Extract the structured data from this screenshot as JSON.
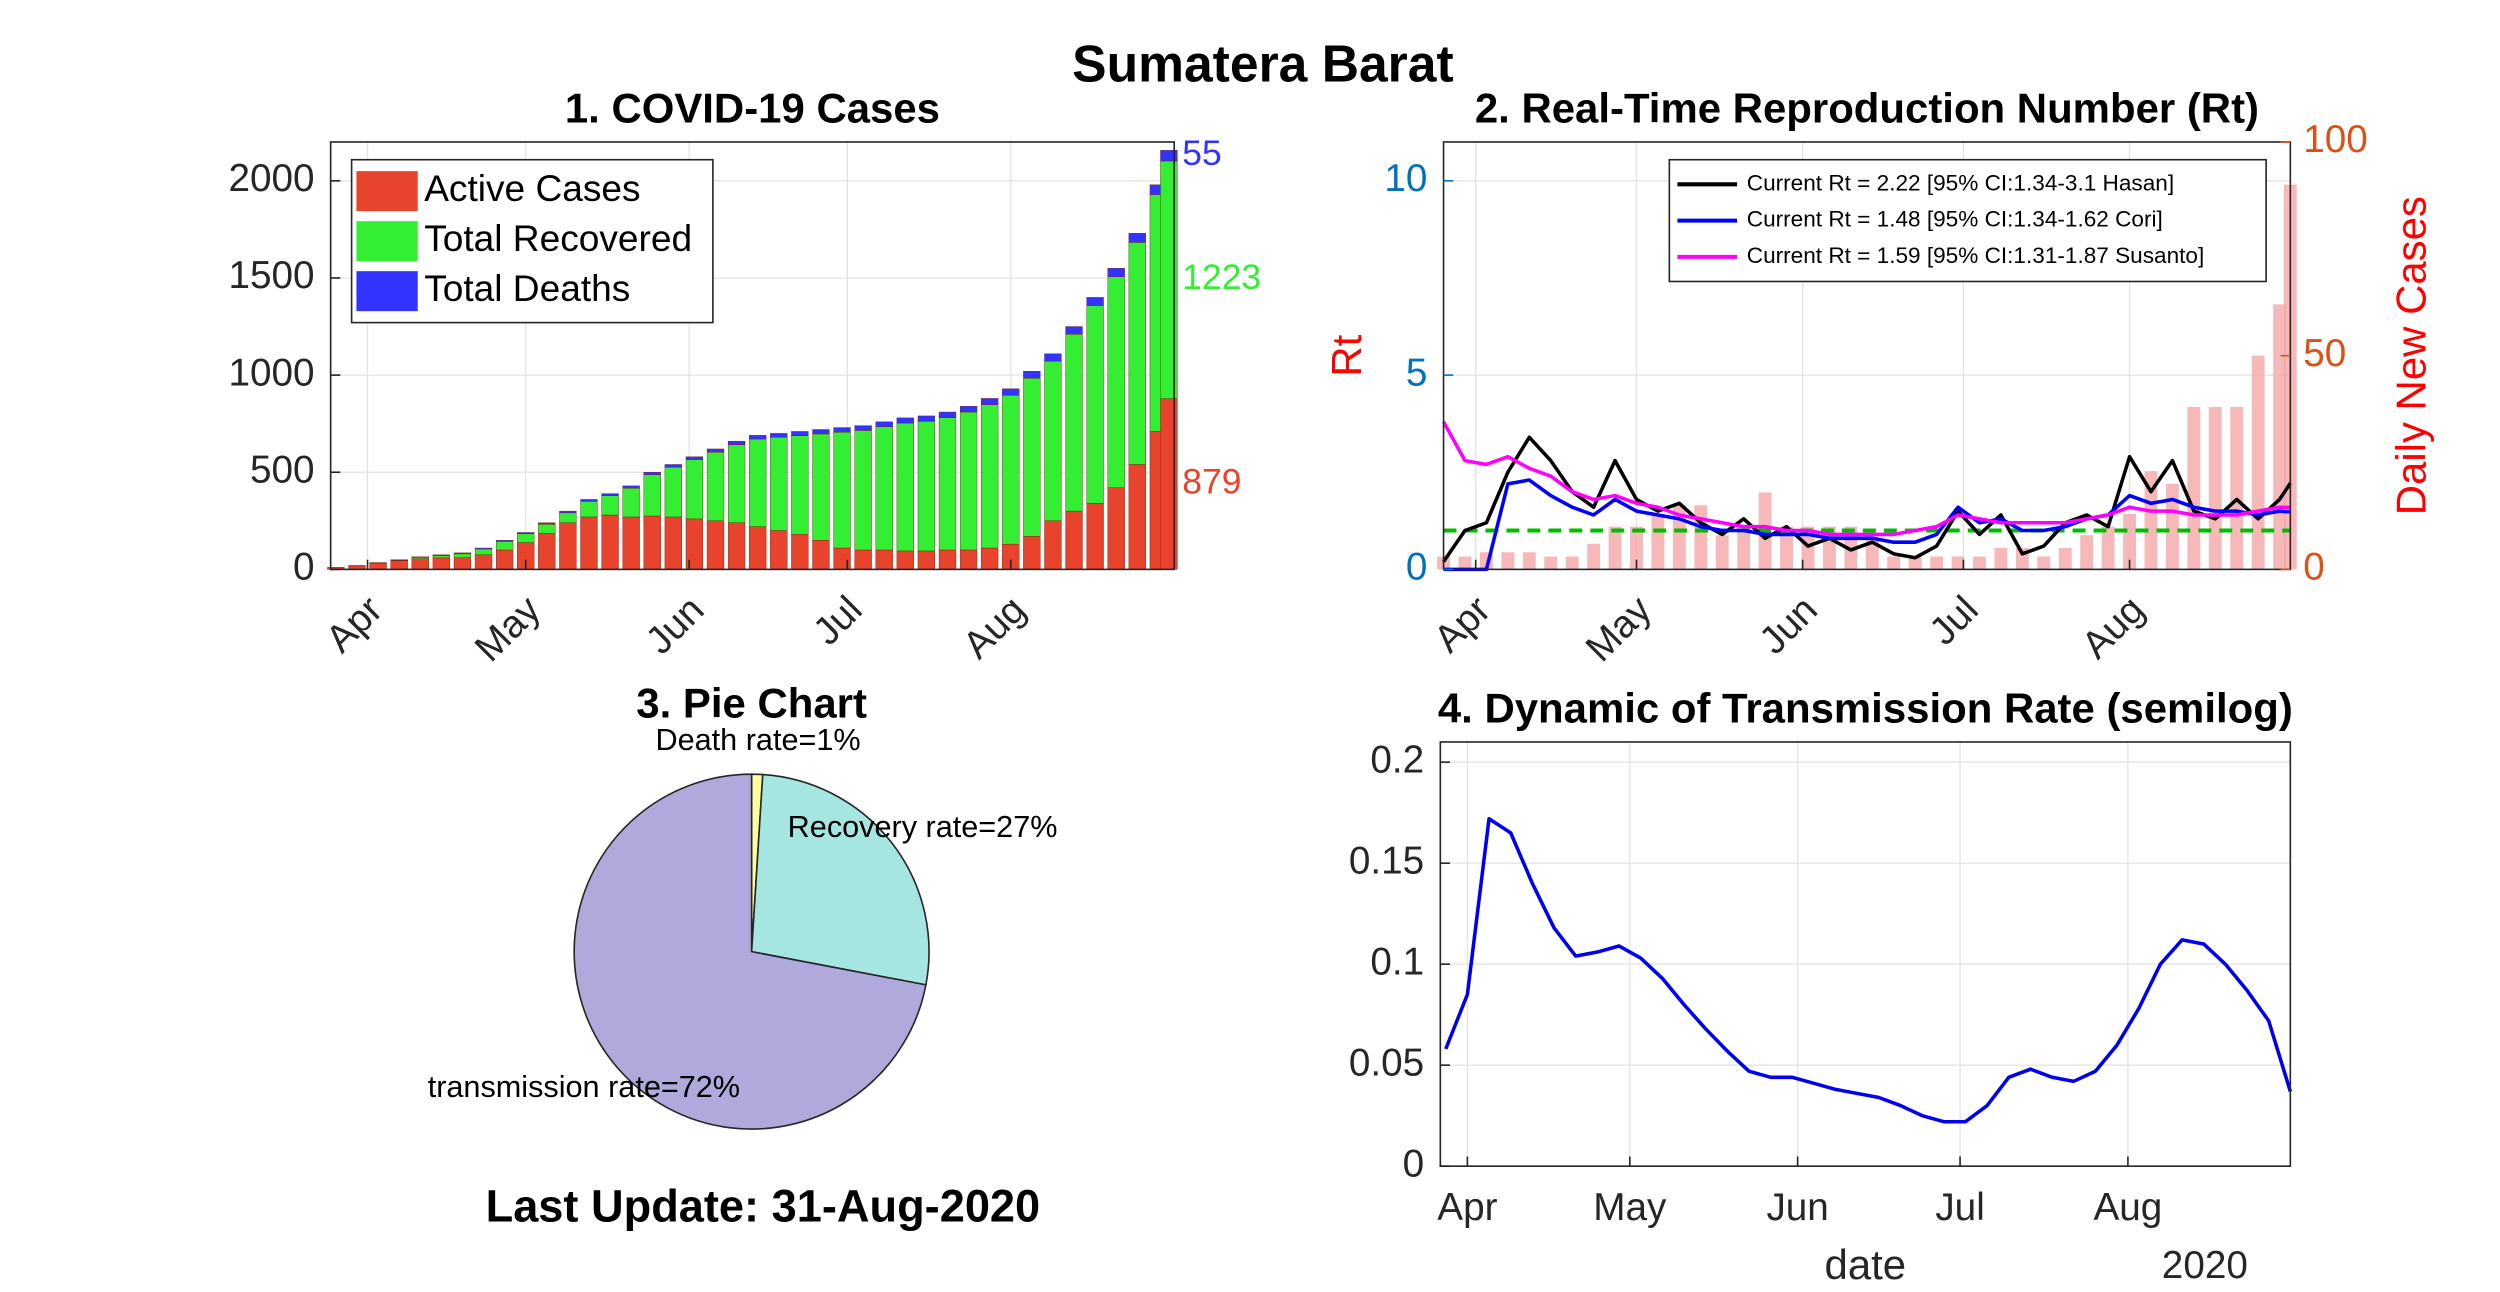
{
  "title": "Sumatera Barat",
  "footer": "Last Update: 31-Aug-2020",
  "chart_data": [
    {
      "type": "bar",
      "stacked": true,
      "title": "1. COVID-19 Cases",
      "x": [
        86,
        90,
        94,
        98,
        102,
        106,
        110,
        114,
        118,
        122,
        126,
        130,
        134,
        138,
        142,
        146,
        150,
        154,
        158,
        162,
        166,
        170,
        174,
        178,
        182,
        186,
        190,
        194,
        198,
        202,
        206,
        210,
        214,
        218,
        222,
        226,
        230,
        234,
        238,
        242,
        244
      ],
      "series": [
        {
          "name": "Active Cases",
          "color": "#e8432c",
          "values": [
            9,
            18,
            32,
            45,
            55,
            60,
            60,
            75,
            100,
            138,
            185,
            240,
            270,
            280,
            270,
            275,
            270,
            260,
            250,
            240,
            220,
            200,
            180,
            150,
            110,
            100,
            100,
            95,
            95,
            100,
            100,
            110,
            130,
            170,
            250,
            300,
            340,
            420,
            540,
            710,
            879
          ]
        },
        {
          "name": "Total Recovered",
          "color": "#33ee33",
          "values": [
            0,
            0,
            1,
            2,
            7,
            11,
            20,
            30,
            44,
            45,
            47,
            51,
            80,
            99,
            148,
            212,
            256,
            305,
            353,
            402,
            451,
            480,
            508,
            547,
            596,
            615,
            634,
            658,
            667,
            681,
            710,
            738,
            766,
            814,
            822,
            910,
            1018,
            1086,
            1143,
            1219,
            1223
          ]
        },
        {
          "name": "Total Deaths",
          "color": "#3333ff",
          "values": [
            1,
            2,
            2,
            3,
            3,
            4,
            5,
            5,
            6,
            7,
            8,
            9,
            10,
            11,
            12,
            13,
            14,
            15,
            17,
            18,
            19,
            20,
            22,
            23,
            24,
            25,
            26,
            27,
            28,
            29,
            30,
            32,
            34,
            36,
            38,
            40,
            42,
            44,
            47,
            51,
            55
          ]
        }
      ],
      "label_last": true,
      "xlim": [
        85,
        245
      ],
      "xticks": [
        {
          "value": 92,
          "label": "Apr"
        },
        {
          "value": 122,
          "label": "May"
        },
        {
          "value": 153,
          "label": "Jun"
        },
        {
          "value": 183,
          "label": "Jul"
        },
        {
          "value": 214,
          "label": "Aug"
        }
      ],
      "ylim": [
        0,
        2200
      ],
      "yticks": [
        0,
        500,
        1000,
        1500,
        2000
      ],
      "grid": true,
      "legend": "upper-left"
    },
    {
      "type": "line",
      "title": "2. Real-Time Reproduction Number (Rt)",
      "ylabel": "Rt",
      "ylabel_color": "#ff0000",
      "y2label": "Daily New Cases",
      "y2label_color": "#ff0000",
      "ytick_color": "#0072bd",
      "y2tick_color": "#d95319",
      "x": [
        86,
        90,
        94,
        98,
        102,
        106,
        110,
        114,
        118,
        122,
        126,
        130,
        134,
        138,
        142,
        146,
        150,
        154,
        158,
        162,
        166,
        170,
        174,
        178,
        182,
        186,
        190,
        194,
        198,
        202,
        206,
        210,
        214,
        218,
        222,
        226,
        230,
        234,
        238,
        242,
        244
      ],
      "series": [
        {
          "name": "Current Rt = 2.22 [95% CI:1.34-3.1 Hasan]",
          "color": "#000000",
          "values": [
            0.2,
            1.0,
            1.2,
            2.5,
            3.4,
            2.8,
            2.0,
            1.6,
            2.8,
            1.8,
            1.5,
            1.7,
            1.2,
            0.9,
            1.3,
            0.8,
            1.1,
            0.6,
            0.8,
            0.5,
            0.7,
            0.4,
            0.3,
            0.6,
            1.5,
            0.9,
            1.4,
            0.4,
            0.6,
            1.2,
            1.4,
            1.1,
            2.9,
            2.0,
            2.8,
            1.5,
            1.3,
            1.8,
            1.3,
            1.8,
            2.22
          ]
        },
        {
          "name": "Current Rt = 1.48 [95% CI:1.34-1.62 Cori]",
          "color": "#0000ff",
          "values": [
            0,
            0,
            0,
            2.2,
            2.3,
            1.9,
            1.6,
            1.4,
            1.8,
            1.5,
            1.4,
            1.3,
            1.1,
            1.0,
            1.0,
            0.9,
            0.9,
            0.9,
            0.8,
            0.8,
            0.8,
            0.7,
            0.7,
            0.9,
            1.6,
            1.2,
            1.3,
            1.0,
            1.0,
            1.1,
            1.3,
            1.4,
            1.9,
            1.7,
            1.8,
            1.6,
            1.5,
            1.5,
            1.4,
            1.5,
            1.48
          ]
        },
        {
          "name": "Current Rt = 1.59 [95% CI:1.31-1.87 Susanto]",
          "color": "#ff00ff",
          "values": [
            3.8,
            2.8,
            2.7,
            2.9,
            2.6,
            2.4,
            2.0,
            1.8,
            1.9,
            1.7,
            1.6,
            1.4,
            1.3,
            1.2,
            1.1,
            1.1,
            1.0,
            1.0,
            0.9,
            0.9,
            0.9,
            0.9,
            1.0,
            1.1,
            1.4,
            1.3,
            1.2,
            1.2,
            1.2,
            1.2,
            1.3,
            1.4,
            1.6,
            1.5,
            1.5,
            1.4,
            1.4,
            1.4,
            1.5,
            1.6,
            1.59
          ]
        }
      ],
      "bar_series": {
        "axis": "y2",
        "color": "#f4a6a6",
        "values": [
          3,
          3,
          4,
          4,
          4,
          3,
          3,
          6,
          10,
          10,
          13,
          15,
          15,
          8,
          10,
          18,
          10,
          10,
          10,
          10,
          8,
          3,
          3,
          3,
          3,
          3,
          5,
          5,
          3,
          5,
          8,
          10,
          13,
          23,
          20,
          38,
          38,
          38,
          50,
          62,
          90
        ]
      },
      "threshold": 1,
      "threshold_color": "#00bb00",
      "xlim": [
        86,
        244
      ],
      "xticks": [
        {
          "value": 92,
          "label": "Apr"
        },
        {
          "value": 122,
          "label": "May"
        },
        {
          "value": 153,
          "label": "Jun"
        },
        {
          "value": 183,
          "label": "Jul"
        },
        {
          "value": 214,
          "label": "Aug"
        }
      ],
      "ylim": [
        0,
        11
      ],
      "yticks": [
        0,
        5,
        10
      ],
      "y2lim": [
        0,
        100
      ],
      "y2ticks": [
        0,
        50,
        100
      ],
      "grid": true,
      "legend": "upper-right"
    },
    {
      "type": "pie",
      "title": "3. Pie Chart",
      "labels": [
        "Death rate=1%",
        "Recovery rate=27%",
        "transmission rate=72%"
      ],
      "values": [
        1,
        27,
        72
      ],
      "colors": [
        "#ffff99",
        "#a6e6e0",
        "#b0a9db"
      ]
    },
    {
      "type": "line",
      "title": "4. Dynamic of Transmission Rate (semilog)",
      "xlabel": "date",
      "year_label": "2020",
      "x": [
        88,
        92,
        96,
        100,
        104,
        108,
        112,
        116,
        120,
        124,
        128,
        132,
        136,
        140,
        144,
        148,
        152,
        156,
        160,
        164,
        168,
        172,
        176,
        180,
        184,
        188,
        192,
        196,
        200,
        204,
        208,
        212,
        216,
        220,
        224,
        228,
        232,
        236,
        240,
        244
      ],
      "values": [
        0.058,
        0.085,
        0.172,
        0.165,
        0.14,
        0.118,
        0.104,
        0.106,
        0.109,
        0.103,
        0.093,
        0.08,
        0.068,
        0.057,
        0.047,
        0.044,
        0.044,
        0.041,
        0.038,
        0.036,
        0.034,
        0.03,
        0.025,
        0.022,
        0.022,
        0.03,
        0.044,
        0.048,
        0.044,
        0.042,
        0.047,
        0.06,
        0.078,
        0.1,
        0.112,
        0.11,
        0.1,
        0.087,
        0.072,
        0.037
      ],
      "color": "#0000ee",
      "xlim": [
        87,
        244
      ],
      "xticks": [
        {
          "value": 92,
          "label": "Apr"
        },
        {
          "value": 122,
          "label": "May"
        },
        {
          "value": 153,
          "label": "Jun"
        },
        {
          "value": 183,
          "label": "Jul"
        },
        {
          "value": 214,
          "label": "Aug"
        }
      ],
      "ylim": [
        0,
        0.21
      ],
      "yticks": [
        0,
        0.05,
        0.1,
        0.15,
        0.2
      ],
      "grid": true
    }
  ]
}
